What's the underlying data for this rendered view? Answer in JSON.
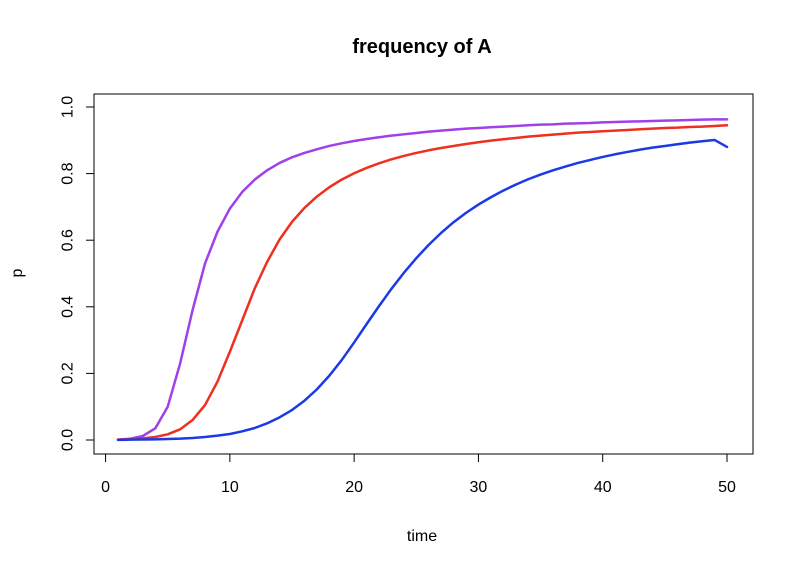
{
  "chart_data": {
    "type": "line",
    "title": "frequency of A",
    "xlabel": "time",
    "ylabel": "p",
    "xlim": [
      1,
      50
    ],
    "ylim": [
      0,
      1
    ],
    "xticks": [
      0,
      10,
      20,
      30,
      40,
      50
    ],
    "yticks": [
      0.0,
      0.2,
      0.4,
      0.6,
      0.8,
      1.0
    ],
    "ytick_labels": [
      "0.0",
      "0.2",
      "0.4",
      "0.6",
      "0.8",
      "1.0"
    ],
    "grid": false,
    "legend": "none",
    "x": [
      1,
      2,
      3,
      4,
      5,
      6,
      7,
      8,
      9,
      10,
      11,
      12,
      13,
      14,
      15,
      16,
      17,
      18,
      19,
      20,
      21,
      22,
      23,
      24,
      25,
      26,
      27,
      28,
      29,
      30,
      31,
      32,
      33,
      34,
      35,
      36,
      37,
      38,
      39,
      40,
      41,
      42,
      43,
      44,
      45,
      46,
      47,
      48,
      49,
      50
    ],
    "series": [
      {
        "color": "#a040e8",
        "values": [
          0.001,
          0.004,
          0.012,
          0.035,
          0.1,
          0.23,
          0.39,
          0.53,
          0.625,
          0.695,
          0.745,
          0.782,
          0.81,
          0.832,
          0.849,
          0.862,
          0.873,
          0.883,
          0.891,
          0.898,
          0.904,
          0.909,
          0.914,
          0.918,
          0.922,
          0.926,
          0.929,
          0.932,
          0.935,
          0.937,
          0.939,
          0.941,
          0.943,
          0.945,
          0.947,
          0.948,
          0.95,
          0.951,
          0.952,
          0.954,
          0.955,
          0.956,
          0.957,
          0.958,
          0.959,
          0.96,
          0.961,
          0.962,
          0.963,
          0.963
        ]
      },
      {
        "color": "#ee3020",
        "values": [
          0.001,
          0.002,
          0.005,
          0.009,
          0.017,
          0.032,
          0.06,
          0.105,
          0.175,
          0.265,
          0.36,
          0.455,
          0.535,
          0.602,
          0.655,
          0.697,
          0.731,
          0.759,
          0.782,
          0.801,
          0.817,
          0.831,
          0.843,
          0.853,
          0.862,
          0.87,
          0.877,
          0.883,
          0.889,
          0.894,
          0.899,
          0.903,
          0.907,
          0.911,
          0.914,
          0.917,
          0.92,
          0.923,
          0.925,
          0.927,
          0.929,
          0.931,
          0.933,
          0.935,
          0.937,
          0.938,
          0.94,
          0.941,
          0.943,
          0.945
        ]
      },
      {
        "color": "#1a3ae8",
        "values": [
          0.0005,
          0.001,
          0.0015,
          0.002,
          0.003,
          0.004,
          0.006,
          0.009,
          0.013,
          0.018,
          0.026,
          0.036,
          0.05,
          0.068,
          0.09,
          0.118,
          0.152,
          0.193,
          0.24,
          0.293,
          0.348,
          0.402,
          0.454,
          0.502,
          0.546,
          0.586,
          0.622,
          0.654,
          0.682,
          0.707,
          0.729,
          0.749,
          0.767,
          0.783,
          0.797,
          0.81,
          0.821,
          0.832,
          0.841,
          0.85,
          0.858,
          0.865,
          0.872,
          0.878,
          0.883,
          0.888,
          0.893,
          0.897,
          0.901,
          0.88
        ]
      }
    ]
  }
}
